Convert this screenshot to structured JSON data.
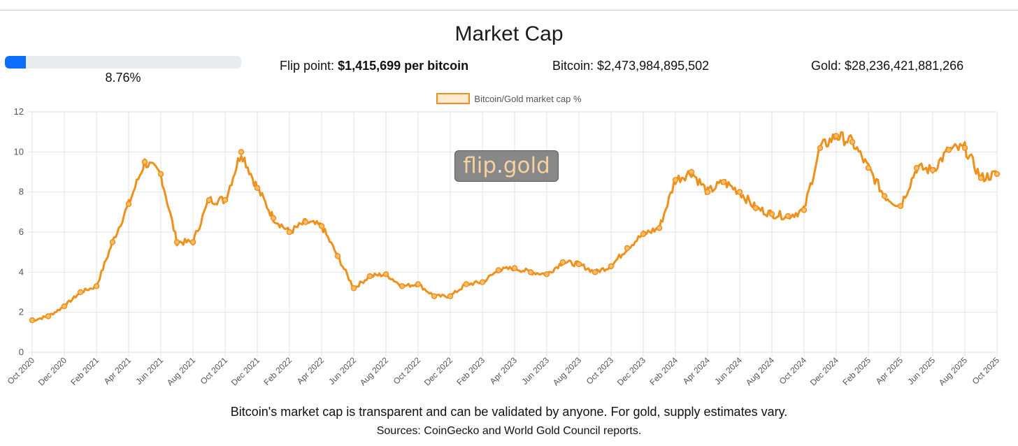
{
  "header": {
    "title": "Market Cap"
  },
  "progress": {
    "label": "8.76%",
    "fraction": 0.0876
  },
  "stats": {
    "flip_prefix": "Flip point:",
    "flip_value": "$1,415,699 per bitcoin",
    "bitcoin_text": "Bitcoin: $2,473,984,895,502",
    "gold_text": "Gold: $28,236,421,881,266"
  },
  "watermark": {
    "left": "flip",
    "dot": ".",
    "right": "gold"
  },
  "footer": {
    "note": "Bitcoin's market cap is transparent and can be validated by anyone. For gold, supply estimates vary.",
    "sources": "Sources: CoinGecko and World Gold Council reports."
  },
  "colors": {
    "line": "#f0901c",
    "point_fill": "#fbbf6a",
    "grid": "#e2e2e2",
    "progress": "#0d6efd"
  },
  "chart_data": {
    "type": "line",
    "title": "",
    "series": [
      {
        "name": "Bitcoin/Gold market cap %",
        "x": [
          "2020-10",
          "2020-11",
          "2020-12",
          "2021-01",
          "2021-02",
          "2021-03",
          "2021-04",
          "2021-05",
          "2021-06",
          "2021-07",
          "2021-08",
          "2021-09",
          "2021-10",
          "2021-11",
          "2021-12",
          "2022-01",
          "2022-02",
          "2022-03",
          "2022-04",
          "2022-05",
          "2022-06",
          "2022-07",
          "2022-08",
          "2022-09",
          "2022-10",
          "2022-11",
          "2022-12",
          "2023-01",
          "2023-02",
          "2023-03",
          "2023-04",
          "2023-05",
          "2023-06",
          "2023-07",
          "2023-08",
          "2023-09",
          "2023-10",
          "2023-11",
          "2023-12",
          "2024-01",
          "2024-02",
          "2024-03",
          "2024-04",
          "2024-05",
          "2024-06",
          "2024-07",
          "2024-08",
          "2024-09",
          "2024-10",
          "2024-11",
          "2024-12",
          "2025-01",
          "2025-02",
          "2025-03",
          "2025-04",
          "2025-05",
          "2025-06",
          "2025-07",
          "2025-08",
          "2025-09",
          "2025-10"
        ],
        "values": [
          1.6,
          1.8,
          2.3,
          3.0,
          3.3,
          5.5,
          7.4,
          9.5,
          8.9,
          5.5,
          5.5,
          7.6,
          7.6,
          10.0,
          8.2,
          6.7,
          6.0,
          6.5,
          6.3,
          4.8,
          3.2,
          3.8,
          3.9,
          3.3,
          3.4,
          2.8,
          2.8,
          3.4,
          3.5,
          4.1,
          4.2,
          4.0,
          3.9,
          4.5,
          4.4,
          4.0,
          4.3,
          5.2,
          5.9,
          6.2,
          8.6,
          9.0,
          8.0,
          8.5,
          8.0,
          7.2,
          6.9,
          6.8,
          7.1,
          10.2,
          10.8,
          10.5,
          9.2,
          7.8,
          7.3,
          9.2,
          9.1,
          10.1,
          10.2,
          8.7,
          8.9
        ]
      }
    ],
    "x_tick_labels": [
      "Oct 2020",
      "Dec 2020",
      "Feb 2021",
      "Apr 2021",
      "Jun 2021",
      "Aug 2021",
      "Oct 2021",
      "Dec 2021",
      "Feb 2022",
      "Apr 2022",
      "Jun 2022",
      "Aug 2022",
      "Oct 2022",
      "Dec 2022",
      "Feb 2023",
      "Apr 2023",
      "Jun 2023",
      "Aug 2023",
      "Oct 2023",
      "Dec 2023",
      "Feb 2024",
      "Apr 2024",
      "Jun 2024",
      "Aug 2024",
      "Oct 2024",
      "Dec 2024",
      "Feb 2025",
      "Apr 2025",
      "Jun 2025",
      "Aug 2025",
      "Oct 2025"
    ],
    "y_ticks": [
      0,
      2,
      4,
      6,
      8,
      10,
      12
    ],
    "ylim": [
      0,
      12
    ],
    "xlabel": "",
    "ylabel": "",
    "legend_position": "top-center",
    "grid": true
  }
}
